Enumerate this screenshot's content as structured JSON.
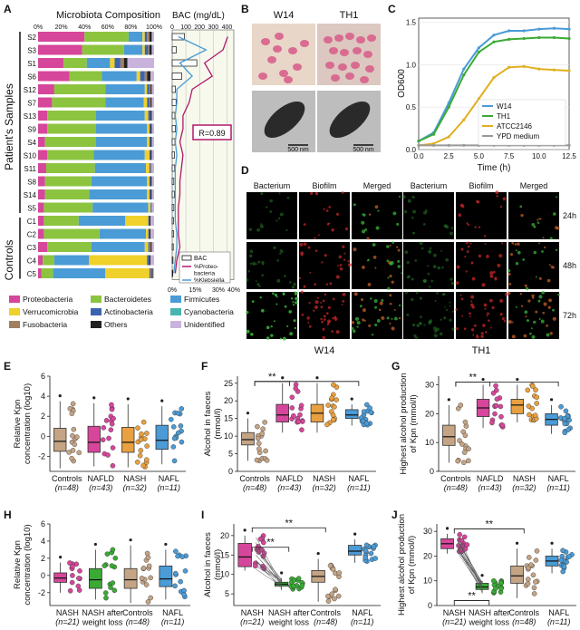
{
  "panels": {
    "A": {
      "label": "A",
      "title_comp": "Microbiota Composition",
      "title_bac": "BAC (mg/dL)",
      "comp_ticks": [
        "0%",
        "20%",
        "40%",
        "60%",
        "80%",
        "100%"
      ],
      "bac_ticks": [
        "0",
        "100",
        "200",
        "300",
        "400"
      ],
      "bottom_ticks": [
        "0%",
        "15%",
        "30%",
        "40%"
      ],
      "group_patients": "Patient's Samples",
      "group_controls": "Controls",
      "r_label": "R=0.89",
      "bac_legend": [
        "BAC",
        "%Proteo-\nbacteria",
        "%Klebsiella"
      ],
      "samples": [
        "S2",
        "S3",
        "S1",
        "S6",
        "S12",
        "S7",
        "S13",
        "S9",
        "S4",
        "S10",
        "S11",
        "S8",
        "S14",
        "S5",
        "C1",
        "C2",
        "C3",
        "C4",
        "C5"
      ],
      "taxa": [
        "Proteobacteria",
        "Bacteroidetes",
        "Firmicutes",
        "Verrucomicrobia",
        "Actinobacteria",
        "Cyanobacteria",
        "Fusobacteria",
        "Others",
        "Unidentified"
      ],
      "colors": {
        "Proteobacteria": "#d6469a",
        "Bacteroidetes": "#8cc43f",
        "Firmicutes": "#4a9bd6",
        "Verrucomicrobia": "#f0d02a",
        "Actinobacteria": "#3c63b0",
        "Cyanobacteria": "#47b5b0",
        "Fusobacteria": "#a08060",
        "Others": "#222222",
        "Unidentified": "#c9b3dc"
      },
      "composition": [
        [
          40,
          38,
          12,
          2,
          2,
          0,
          2,
          2,
          2
        ],
        [
          38,
          36,
          16,
          2,
          3,
          0,
          1,
          2,
          2
        ],
        [
          22,
          20,
          20,
          4,
          5,
          0,
          3,
          3,
          23
        ],
        [
          27,
          28,
          30,
          3,
          4,
          0,
          2,
          3,
          3
        ],
        [
          14,
          44,
          34,
          2,
          2,
          0,
          1,
          1,
          2
        ],
        [
          12,
          46,
          33,
          3,
          2,
          0,
          1,
          1,
          2
        ],
        [
          8,
          42,
          42,
          3,
          2,
          0,
          0,
          1,
          2
        ],
        [
          8,
          42,
          44,
          2,
          1,
          0,
          0,
          1,
          2
        ],
        [
          6,
          44,
          44,
          2,
          1,
          0,
          0,
          1,
          2
        ],
        [
          8,
          40,
          44,
          4,
          1,
          0,
          0,
          1,
          2
        ],
        [
          7,
          42,
          44,
          3,
          1,
          0,
          1,
          0,
          2
        ],
        [
          6,
          40,
          48,
          2,
          1,
          0,
          0,
          1,
          2
        ],
        [
          6,
          38,
          50,
          2,
          1,
          0,
          0,
          1,
          2
        ],
        [
          5,
          42,
          48,
          2,
          1,
          0,
          0,
          0,
          2
        ],
        [
          5,
          30,
          40,
          20,
          1,
          0,
          0,
          1,
          3
        ],
        [
          5,
          48,
          40,
          2,
          1,
          0,
          0,
          1,
          3
        ],
        [
          8,
          38,
          46,
          3,
          1,
          0,
          1,
          1,
          2
        ],
        [
          4,
          10,
          30,
          50,
          2,
          0,
          0,
          1,
          3
        ],
        [
          3,
          10,
          45,
          38,
          1,
          0,
          1,
          1,
          1
        ]
      ],
      "bac": [
        45,
        15,
        90,
        35,
        12,
        14,
        10,
        12,
        10,
        8,
        9,
        6,
        8,
        6,
        5,
        5,
        4,
        3,
        2
      ],
      "proteo_pct": [
        36,
        33,
        21,
        26,
        13,
        11,
        7,
        7,
        5,
        7,
        6,
        5,
        5,
        4,
        4,
        4,
        5,
        3,
        2
      ],
      "kleb_pct": [
        4,
        22,
        5,
        13,
        3,
        3,
        2,
        3,
        2,
        3,
        2,
        2,
        2,
        2,
        2,
        3,
        3,
        2,
        1
      ]
    },
    "B": {
      "label": "B",
      "strains": [
        "W14",
        "TH1"
      ],
      "scale_bars": [
        "500 nm",
        "500 nm"
      ]
    },
    "C": {
      "label": "C",
      "ylabel": "OD600",
      "xlabel": "Time (h)",
      "xticks": [
        "0.0",
        "2.5",
        "5.0",
        "7.5",
        "10.0",
        "12.5"
      ],
      "yticks": [
        "0.0",
        "0.5",
        "1.0",
        "1.5"
      ],
      "series": [
        {
          "name": "W14",
          "color": "#4a9bd6",
          "values": [
            0.1,
            0.2,
            0.55,
            0.95,
            1.2,
            1.35,
            1.4,
            1.4,
            1.42,
            1.43,
            1.42
          ]
        },
        {
          "name": "TH1",
          "color": "#3aaa35",
          "values": [
            0.1,
            0.18,
            0.5,
            0.88,
            1.15,
            1.27,
            1.3,
            1.31,
            1.32,
            1.32,
            1.31
          ]
        },
        {
          "name": "ATCC2146",
          "color": "#e0b020",
          "values": [
            0.05,
            0.07,
            0.15,
            0.35,
            0.6,
            0.85,
            0.97,
            0.98,
            0.95,
            0.94,
            0.93
          ]
        },
        {
          "name": "YPD medium",
          "color": "#999999",
          "values": [
            0.05,
            0.05,
            0.05,
            0.05,
            0.05,
            0.05,
            0.05,
            0.05,
            0.05,
            0.05,
            0.05
          ]
        }
      ],
      "x": [
        0,
        1.25,
        2.5,
        3.75,
        5,
        6.25,
        7.5,
        8.75,
        10,
        11.25,
        12.5
      ]
    },
    "D": {
      "label": "D",
      "cols": [
        "Bacterium",
        "Biofilm",
        "Merged"
      ],
      "times": [
        "24h",
        "48h",
        "72h"
      ],
      "strains": [
        "W14",
        "TH1"
      ]
    },
    "E": {
      "label": "E",
      "ylabel": "Relative Kpn\nconcentration (log10)",
      "yticks": [
        "-2",
        "0",
        "2",
        "4",
        "6"
      ],
      "groups": [
        {
          "name": "Controls",
          "n": "(n=48)",
          "color": "#c4a484"
        },
        {
          "name": "NAFLD",
          "n": "(n=43)",
          "color": "#d6469a"
        },
        {
          "name": "NASH",
          "n": "(n=32)",
          "color": "#e8a040"
        },
        {
          "name": "NAFL",
          "n": "(n=11)",
          "color": "#4a9bd6"
        }
      ],
      "boxes": [
        [
          -3.2,
          -1.5,
          -0.5,
          0.8,
          3.5
        ],
        [
          -3,
          -1.6,
          -0.6,
          1,
          3.3
        ],
        [
          -3.1,
          -1.6,
          -0.6,
          0.9,
          3.2
        ],
        [
          -2.8,
          -1.3,
          -0.4,
          1.1,
          3
        ]
      ],
      "ylim": [
        -3.5,
        6
      ]
    },
    "F": {
      "label": "F",
      "ylabel": "Alcohol in faeces\n(mmol/l)",
      "yticks": [
        "0",
        "5",
        "10",
        "15",
        "20",
        "25"
      ],
      "sig": "**",
      "groups": [
        {
          "name": "Controls",
          "n": "(n=48)",
          "color": "#c4a484"
        },
        {
          "name": "NAFLD",
          "n": "(n=43)",
          "color": "#d6469a"
        },
        {
          "name": "NASH",
          "n": "(n=32)",
          "color": "#e8a040"
        },
        {
          "name": "NAFL",
          "n": "(n=11)",
          "color": "#4a9bd6"
        }
      ],
      "boxes": [
        [
          3,
          7.5,
          9,
          11,
          15
        ],
        [
          11,
          14,
          16,
          19,
          25
        ],
        [
          11,
          14,
          16.5,
          19,
          25
        ],
        [
          13,
          15,
          16,
          17.5,
          19
        ]
      ],
      "ylim": [
        0,
        27
      ]
    },
    "G": {
      "label": "G",
      "ylabel": "Highest alcohol production\nof Kpn (mmol/l)",
      "yticks": [
        "0",
        "10",
        "20",
        "30"
      ],
      "sig": "**",
      "groups": [
        {
          "name": "Controls",
          "n": "(n=48)",
          "color": "#c4a484"
        },
        {
          "name": "NAFLD",
          "n": "(n=43)",
          "color": "#d6469a"
        },
        {
          "name": "NASH",
          "n": "(n=32)",
          "color": "#e8a040"
        },
        {
          "name": "NAFL",
          "n": "(n=11)",
          "color": "#4a9bd6"
        }
      ],
      "boxes": [
        [
          3,
          9,
          12,
          16,
          23
        ],
        [
          15,
          19,
          22,
          25,
          30
        ],
        [
          17,
          20,
          23,
          25,
          30
        ],
        [
          13,
          16,
          18,
          20,
          23
        ]
      ],
      "ylim": [
        0,
        33
      ]
    },
    "H": {
      "label": "H",
      "ylabel": "Relative Kpn\nconcentration (log10)",
      "yticks": [
        "-2",
        "0",
        "2",
        "4",
        "6"
      ],
      "groups": [
        {
          "name": "NASH",
          "n": "(n=21)",
          "color": "#d6469a"
        },
        {
          "name": "NASH after\nweight loss",
          "n": "",
          "color": "#3aaa35"
        },
        {
          "name": "Controls",
          "n": "(n=48)",
          "color": "#c4a484"
        },
        {
          "name": "NAFL",
          "n": "(n=11)",
          "color": "#4a9bd6"
        }
      ],
      "boxes": [
        [
          -2,
          -0.8,
          -0.3,
          0.3,
          1.5
        ],
        [
          -2.8,
          -1.5,
          -0.5,
          0.8,
          3
        ],
        [
          -3.2,
          -1.5,
          -0.5,
          0.8,
          3.5
        ],
        [
          -2.8,
          -1.3,
          -0.4,
          1.1,
          3
        ]
      ],
      "ylim": [
        -3.5,
        6
      ]
    },
    "I": {
      "label": "I",
      "ylabel": "Alcohol in faeces\n(mmol/l)",
      "yticks": [
        "5",
        "10",
        "15",
        "20"
      ],
      "sig": [
        "**",
        "**"
      ],
      "groups": [
        {
          "name": "NASH",
          "n": "(n=21)",
          "color": "#d6469a"
        },
        {
          "name": "NASH after\nweight loss",
          "n": "",
          "color": "#3aaa35"
        },
        {
          "name": "Controls",
          "n": "(n=48)",
          "color": "#c4a484"
        },
        {
          "name": "NAFL",
          "n": "(n=11)",
          "color": "#4a9bd6"
        }
      ],
      "boxes": [
        [
          11,
          12,
          14.5,
          18,
          20
        ],
        [
          6,
          7,
          7.5,
          8,
          9
        ],
        [
          3,
          8,
          9.5,
          11,
          14
        ],
        [
          13,
          15,
          16,
          17.5,
          19
        ]
      ],
      "ylim": [
        2,
        23
      ]
    },
    "J": {
      "label": "J",
      "ylabel": "Highest alcohol production\nof Kpn (mmol/l)",
      "yticks": [
        "0",
        "10",
        "20",
        "30"
      ],
      "sig": [
        "**",
        "**"
      ],
      "groups": [
        {
          "name": "NASH",
          "n": "(n=21)",
          "color": "#d6469a"
        },
        {
          "name": "NASH after\nweight loss",
          "n": "",
          "color": "#3aaa35"
        },
        {
          "name": "Controls",
          "n": "(n=48)",
          "color": "#c4a484"
        },
        {
          "name": "NAFL",
          "n": "(n=11)",
          "color": "#4a9bd6"
        }
      ],
      "boxes": [
        [
          21,
          23,
          25,
          27,
          29
        ],
        [
          5,
          6.5,
          7.5,
          9,
          10
        ],
        [
          3,
          9,
          12,
          16,
          23
        ],
        [
          13,
          16,
          18,
          20,
          23
        ]
      ],
      "ylim": [
        0,
        33
      ]
    }
  }
}
